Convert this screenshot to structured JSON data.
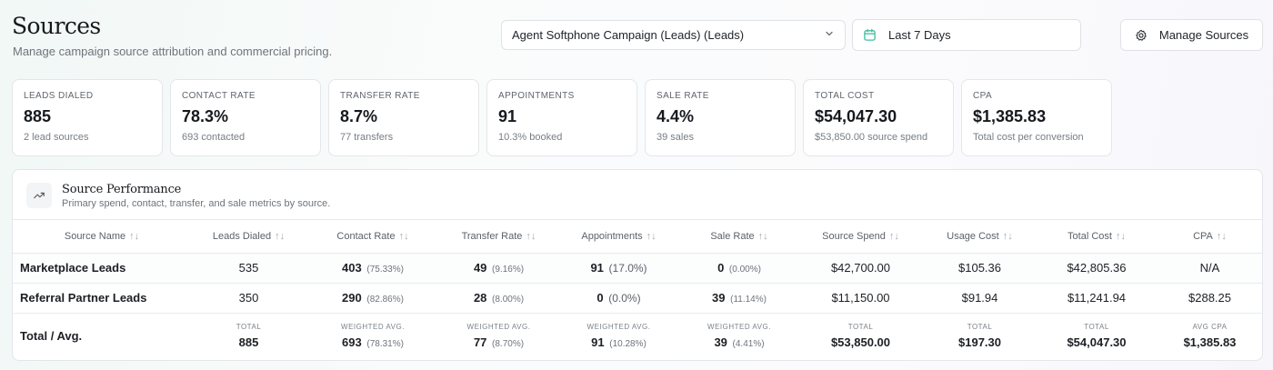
{
  "header": {
    "title": "Sources",
    "subtitle": "Manage campaign source attribution and commercial pricing.",
    "campaign_select": "Agent Softphone Campaign (Leads) (Leads)",
    "date_range": "Last 7 Days",
    "manage_button": "Manage Sources"
  },
  "kpis": [
    {
      "label": "Leads Dialed",
      "value": "885",
      "sub": "2 lead sources"
    },
    {
      "label": "Contact Rate",
      "value": "78.3%",
      "sub": "693 contacted"
    },
    {
      "label": "Transfer Rate",
      "value": "8.7%",
      "sub": "77 transfers"
    },
    {
      "label": "Appointments",
      "value": "91",
      "sub": "10.3% booked"
    },
    {
      "label": "Sale Rate",
      "value": "4.4%",
      "sub": "39 sales"
    },
    {
      "label": "Total Cost",
      "value": "$54,047.30",
      "sub": "$53,850.00 source spend"
    },
    {
      "label": "CPA",
      "value": "$1,385.83",
      "sub": "Total cost per conversion"
    }
  ],
  "panel": {
    "title": "Source Performance",
    "subtitle": "Primary spend, contact, transfer, and sale metrics by source.",
    "sort_glyph": "↑↓",
    "columns": [
      "Source Name",
      "Leads Dialed",
      "Contact Rate",
      "Transfer Rate",
      "Appointments",
      "Sale Rate",
      "Source Spend",
      "Usage Cost",
      "Total Cost",
      "CPA"
    ],
    "rows": [
      {
        "name": "Marketplace Leads",
        "leads": "535",
        "contact": "403",
        "contact_pct": "(75.33%)",
        "transfer": "49",
        "transfer_pct": "(9.16%)",
        "appointments": "91",
        "appointments_pct": "(17.0%)",
        "sale": "0",
        "sale_pct": "(0.00%)",
        "spend": "$42,700.00",
        "usage": "$105.36",
        "total": "$42,805.36",
        "cpa": "N/A"
      },
      {
        "name": "Referral Partner Leads",
        "leads": "350",
        "contact": "290",
        "contact_pct": "(82.86%)",
        "transfer": "28",
        "transfer_pct": "(8.00%)",
        "appointments": "0",
        "appointments_pct": "(0.0%)",
        "sale": "39",
        "sale_pct": "(11.14%)",
        "spend": "$11,150.00",
        "usage": "$91.94",
        "total": "$11,241.94",
        "cpa": "$288.25"
      }
    ],
    "total": {
      "name": "Total / Avg.",
      "leads_label": "Total",
      "leads": "885",
      "contact_label": "Weighted Avg.",
      "contact": "693",
      "contact_pct": "(78.31%)",
      "transfer_label": "Weighted Avg.",
      "transfer": "77",
      "transfer_pct": "(8.70%)",
      "appointments_label": "Weighted Avg.",
      "appointments": "91",
      "appointments_pct": "(10.28%)",
      "sale_label": "Weighted Avg.",
      "sale": "39",
      "sale_pct": "(4.41%)",
      "spend_label": "Total",
      "spend": "$53,850.00",
      "usage_label": "Total",
      "usage": "$197.30",
      "total_label": "Total",
      "total": "$54,047.30",
      "cpa_label": "Avg CPA",
      "cpa": "$1,385.83"
    }
  },
  "icons": {
    "chevron": "chevron-down-icon",
    "calendar": "calendar-icon",
    "gear": "gear-icon",
    "trend": "trending-up-icon"
  },
  "colors": {
    "calendar_accent": "#3fbf9f"
  }
}
